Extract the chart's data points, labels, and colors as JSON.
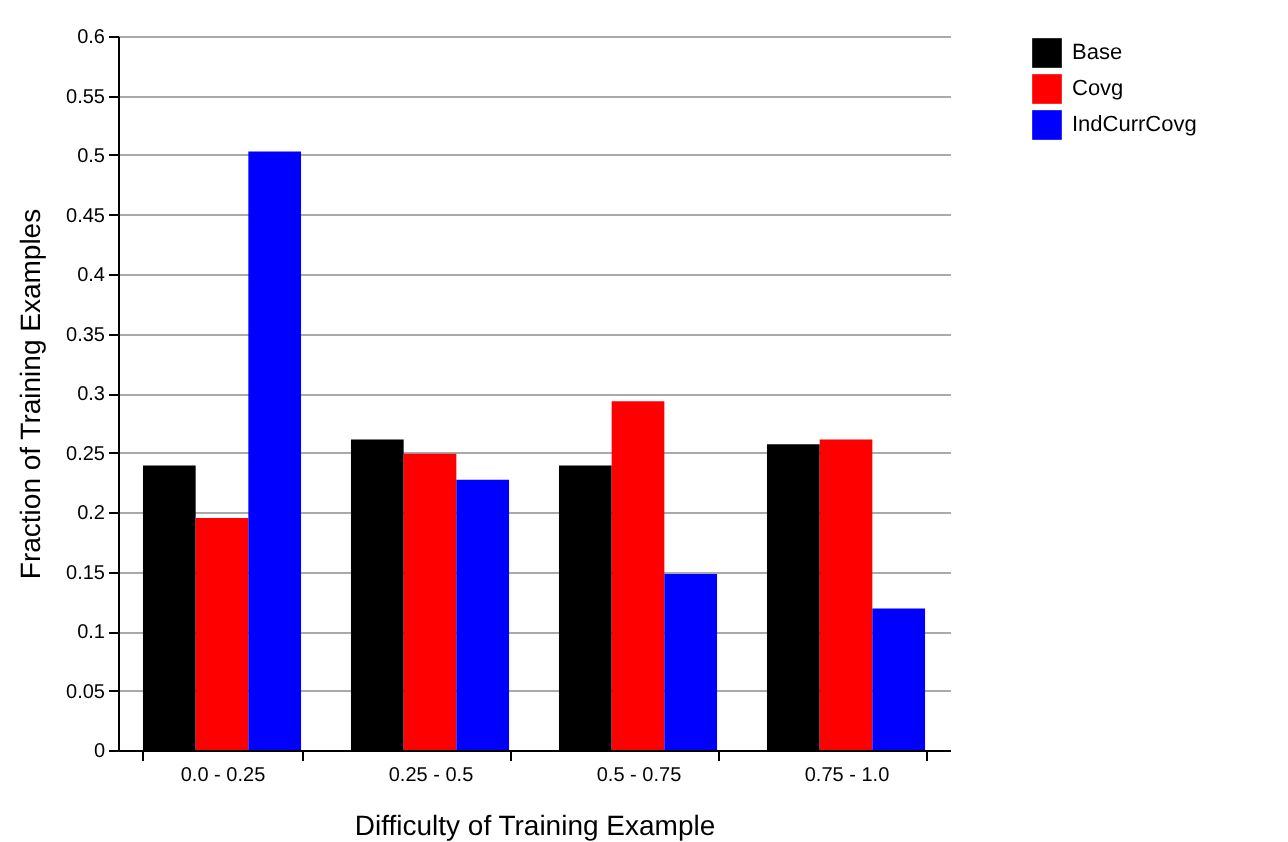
{
  "chart_data": {
    "type": "bar",
    "xlabel": "Difficulty of Training Example",
    "ylabel": "Fraction of Training Examples",
    "categories": [
      "0.0 - 0.25",
      "0.25 - 0.5",
      "0.5 - 0.75",
      "0.75 - 1.0"
    ],
    "series": [
      {
        "name": "Base",
        "color": "#000000",
        "values": [
          0.239,
          0.261,
          0.239,
          0.257
        ]
      },
      {
        "name": "Covg",
        "color": "#ff0000",
        "values": [
          0.195,
          0.249,
          0.293,
          0.261
        ]
      },
      {
        "name": "IndCurrCovg",
        "color": "#0000ff",
        "values": [
          0.503,
          0.227,
          0.148,
          0.119
        ]
      }
    ],
    "ylim": [
      0,
      0.6
    ],
    "yticks": [
      0,
      0.05,
      0.1,
      0.15,
      0.2,
      0.25,
      0.3,
      0.35,
      0.4,
      0.45,
      0.5,
      0.55,
      0.6
    ],
    "grid": "y",
    "legend": "top right"
  }
}
